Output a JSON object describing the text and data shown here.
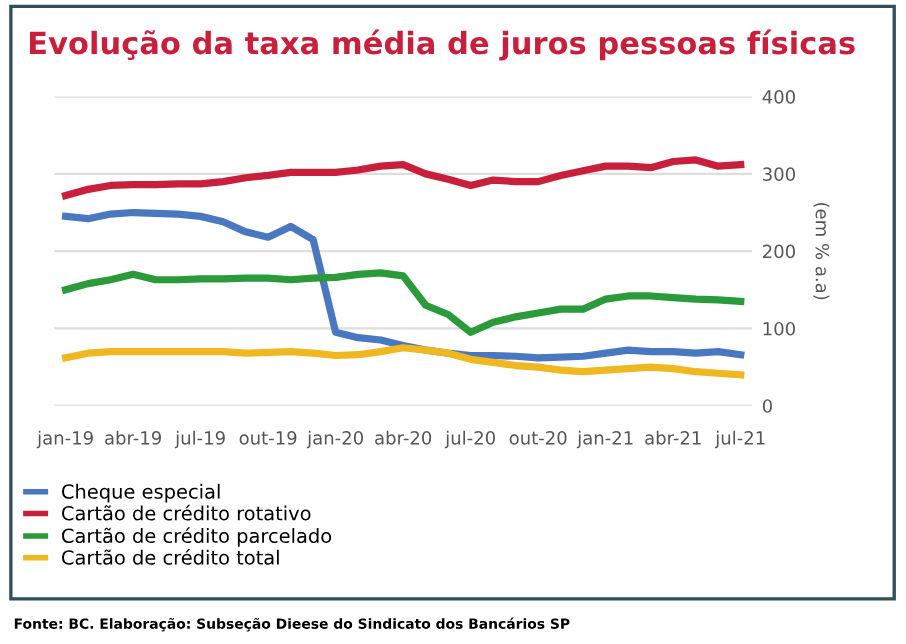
{
  "chart_data": {
    "type": "line",
    "title": "Evolução da taxa média de juros pessoas físicas",
    "ylabel": "(em % a.a)",
    "categories": [
      "jan-19",
      null,
      null,
      "abr-19",
      null,
      null,
      "jul-19",
      null,
      null,
      "out-19",
      null,
      null,
      "jan-20",
      null,
      null,
      "abr-20",
      null,
      null,
      "jul-20",
      null,
      null,
      "out-20",
      null,
      null,
      "jan-21",
      null,
      null,
      "abr-21",
      null,
      null,
      "jul-21"
    ],
    "series": [
      {
        "name": "Cheque especial",
        "color": "#4a78c0",
        "values": [
          245,
          242,
          248,
          250,
          249,
          248,
          245,
          238,
          225,
          218,
          232,
          215,
          95,
          88,
          85,
          78,
          72,
          68,
          65,
          65,
          64,
          62,
          63,
          64,
          68,
          72,
          70,
          70,
          68,
          70,
          66
        ]
      },
      {
        "name": "Cartão de crédito rotativo",
        "color": "#c8203c",
        "values": [
          272,
          280,
          285,
          286,
          286,
          287,
          287,
          290,
          295,
          298,
          302,
          302,
          302,
          305,
          310,
          312,
          300,
          293,
          285,
          292,
          290,
          290,
          298,
          304,
          310,
          310,
          308,
          316,
          318,
          310,
          312
        ]
      },
      {
        "name": "Cartão de crédito parcelado",
        "color": "#2a9a3a",
        "values": [
          150,
          158,
          163,
          170,
          163,
          163,
          164,
          164,
          165,
          165,
          163,
          165,
          166,
          170,
          172,
          168,
          130,
          118,
          95,
          108,
          115,
          120,
          125,
          125,
          138,
          142,
          142,
          140,
          138,
          137,
          135
        ]
      },
      {
        "name": "Cartão de crédito total",
        "color": "#f0b820",
        "values": [
          62,
          68,
          70,
          70,
          70,
          70,
          70,
          70,
          68,
          69,
          70,
          68,
          65,
          66,
          70,
          75,
          72,
          68,
          60,
          56,
          52,
          50,
          46,
          44,
          46,
          48,
          50,
          48,
          44,
          42,
          40
        ]
      }
    ],
    "ylim": [
      0,
      400
    ],
    "yticks": [
      0,
      100,
      200,
      300,
      400
    ],
    "grid": "y",
    "legend": "bottom",
    "marker": "none",
    "line_style": "solid",
    "annotations": [
      "Fonte: BC. Elaboração: Subseção Dieese do Sindicato dos Bancários SP"
    ]
  }
}
